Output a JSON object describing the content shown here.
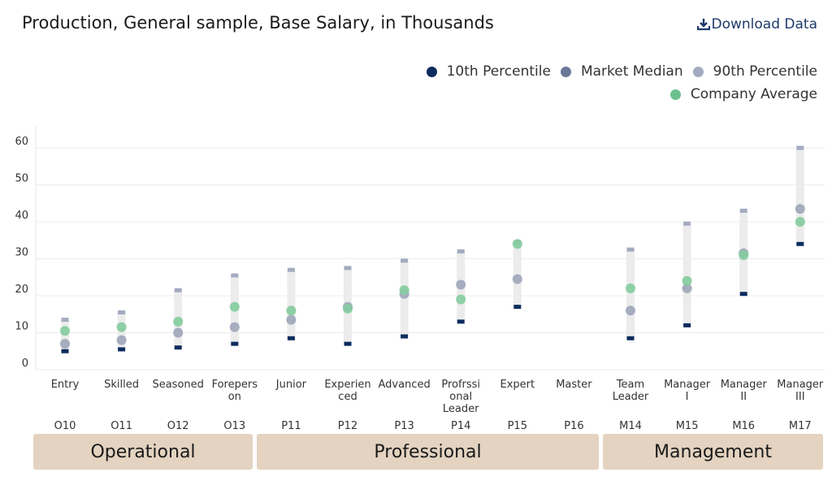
{
  "header": {
    "title": "Production, General sample, Base Salary, in Thousands",
    "download_label": "Download Data"
  },
  "legend": [
    {
      "label": "10th Percentile",
      "color": "#0c2c5e"
    },
    {
      "label": "Market Median",
      "color": "#6a7896"
    },
    {
      "label": "90th Percentile",
      "color": "#a3abc0"
    },
    {
      "label": "Company Average",
      "color": "#6cc18e"
    }
  ],
  "bands": [
    {
      "label": "Operational"
    },
    {
      "label": "Professional"
    },
    {
      "label": "Management"
    }
  ],
  "chart_data": {
    "type": "scatter",
    "title": "Production, General sample, Base Salary, in Thousands",
    "ylim": [
      0,
      60
    ],
    "yticks": [
      0,
      10,
      20,
      30,
      40,
      50,
      60
    ],
    "grid": true,
    "legend_position": "top-right",
    "categories": [
      "Entry",
      "Skilled",
      "Seasoned",
      "Forepers on",
      "Junior",
      "Experien ced",
      "Advanced",
      "Profrssi onal Leader",
      "Expert",
      "Master",
      "Team Leader",
      "Manager I",
      "Manager II",
      "Manager III"
    ],
    "category_lines": [
      [
        "Entry"
      ],
      [
        "Skilled"
      ],
      [
        "Seasoned"
      ],
      [
        "Forepers",
        "on"
      ],
      [
        "Junior"
      ],
      [
        "Experien",
        "ced"
      ],
      [
        "Advanced"
      ],
      [
        "Profrssi",
        "onal",
        "Leader"
      ],
      [
        "Expert"
      ],
      [
        "Master"
      ],
      [
        "Team",
        "Leader"
      ],
      [
        "Manager",
        "I"
      ],
      [
        "Manager",
        "II"
      ],
      [
        "Manager",
        "III"
      ]
    ],
    "codes": [
      "O10",
      "O11",
      "O12",
      "O13",
      "P11",
      "P12",
      "P13",
      "P14",
      "P15",
      "P16",
      "M14",
      "M15",
      "M16",
      "M17"
    ],
    "series": [
      {
        "name": "10th Percentile",
        "values": [
          5,
          5.5,
          6,
          7,
          8.5,
          7,
          9,
          13,
          17,
          null,
          8.5,
          12,
          20.5,
          34
        ]
      },
      {
        "name": "Market Median",
        "values": [
          7,
          8,
          10,
          11.5,
          13.5,
          17,
          20.5,
          23,
          24.5,
          null,
          16,
          22,
          31.5,
          43.5
        ]
      },
      {
        "name": "90th Percentile",
        "values": [
          13.5,
          15.5,
          21.5,
          25.5,
          27,
          27.5,
          29.5,
          32,
          34.5,
          null,
          32.5,
          39.5,
          43,
          60
        ]
      },
      {
        "name": "Company Average",
        "values": [
          10.5,
          11.5,
          13,
          17,
          16,
          16.5,
          21.5,
          19,
          34,
          null,
          22,
          24,
          31,
          40
        ]
      }
    ]
  }
}
